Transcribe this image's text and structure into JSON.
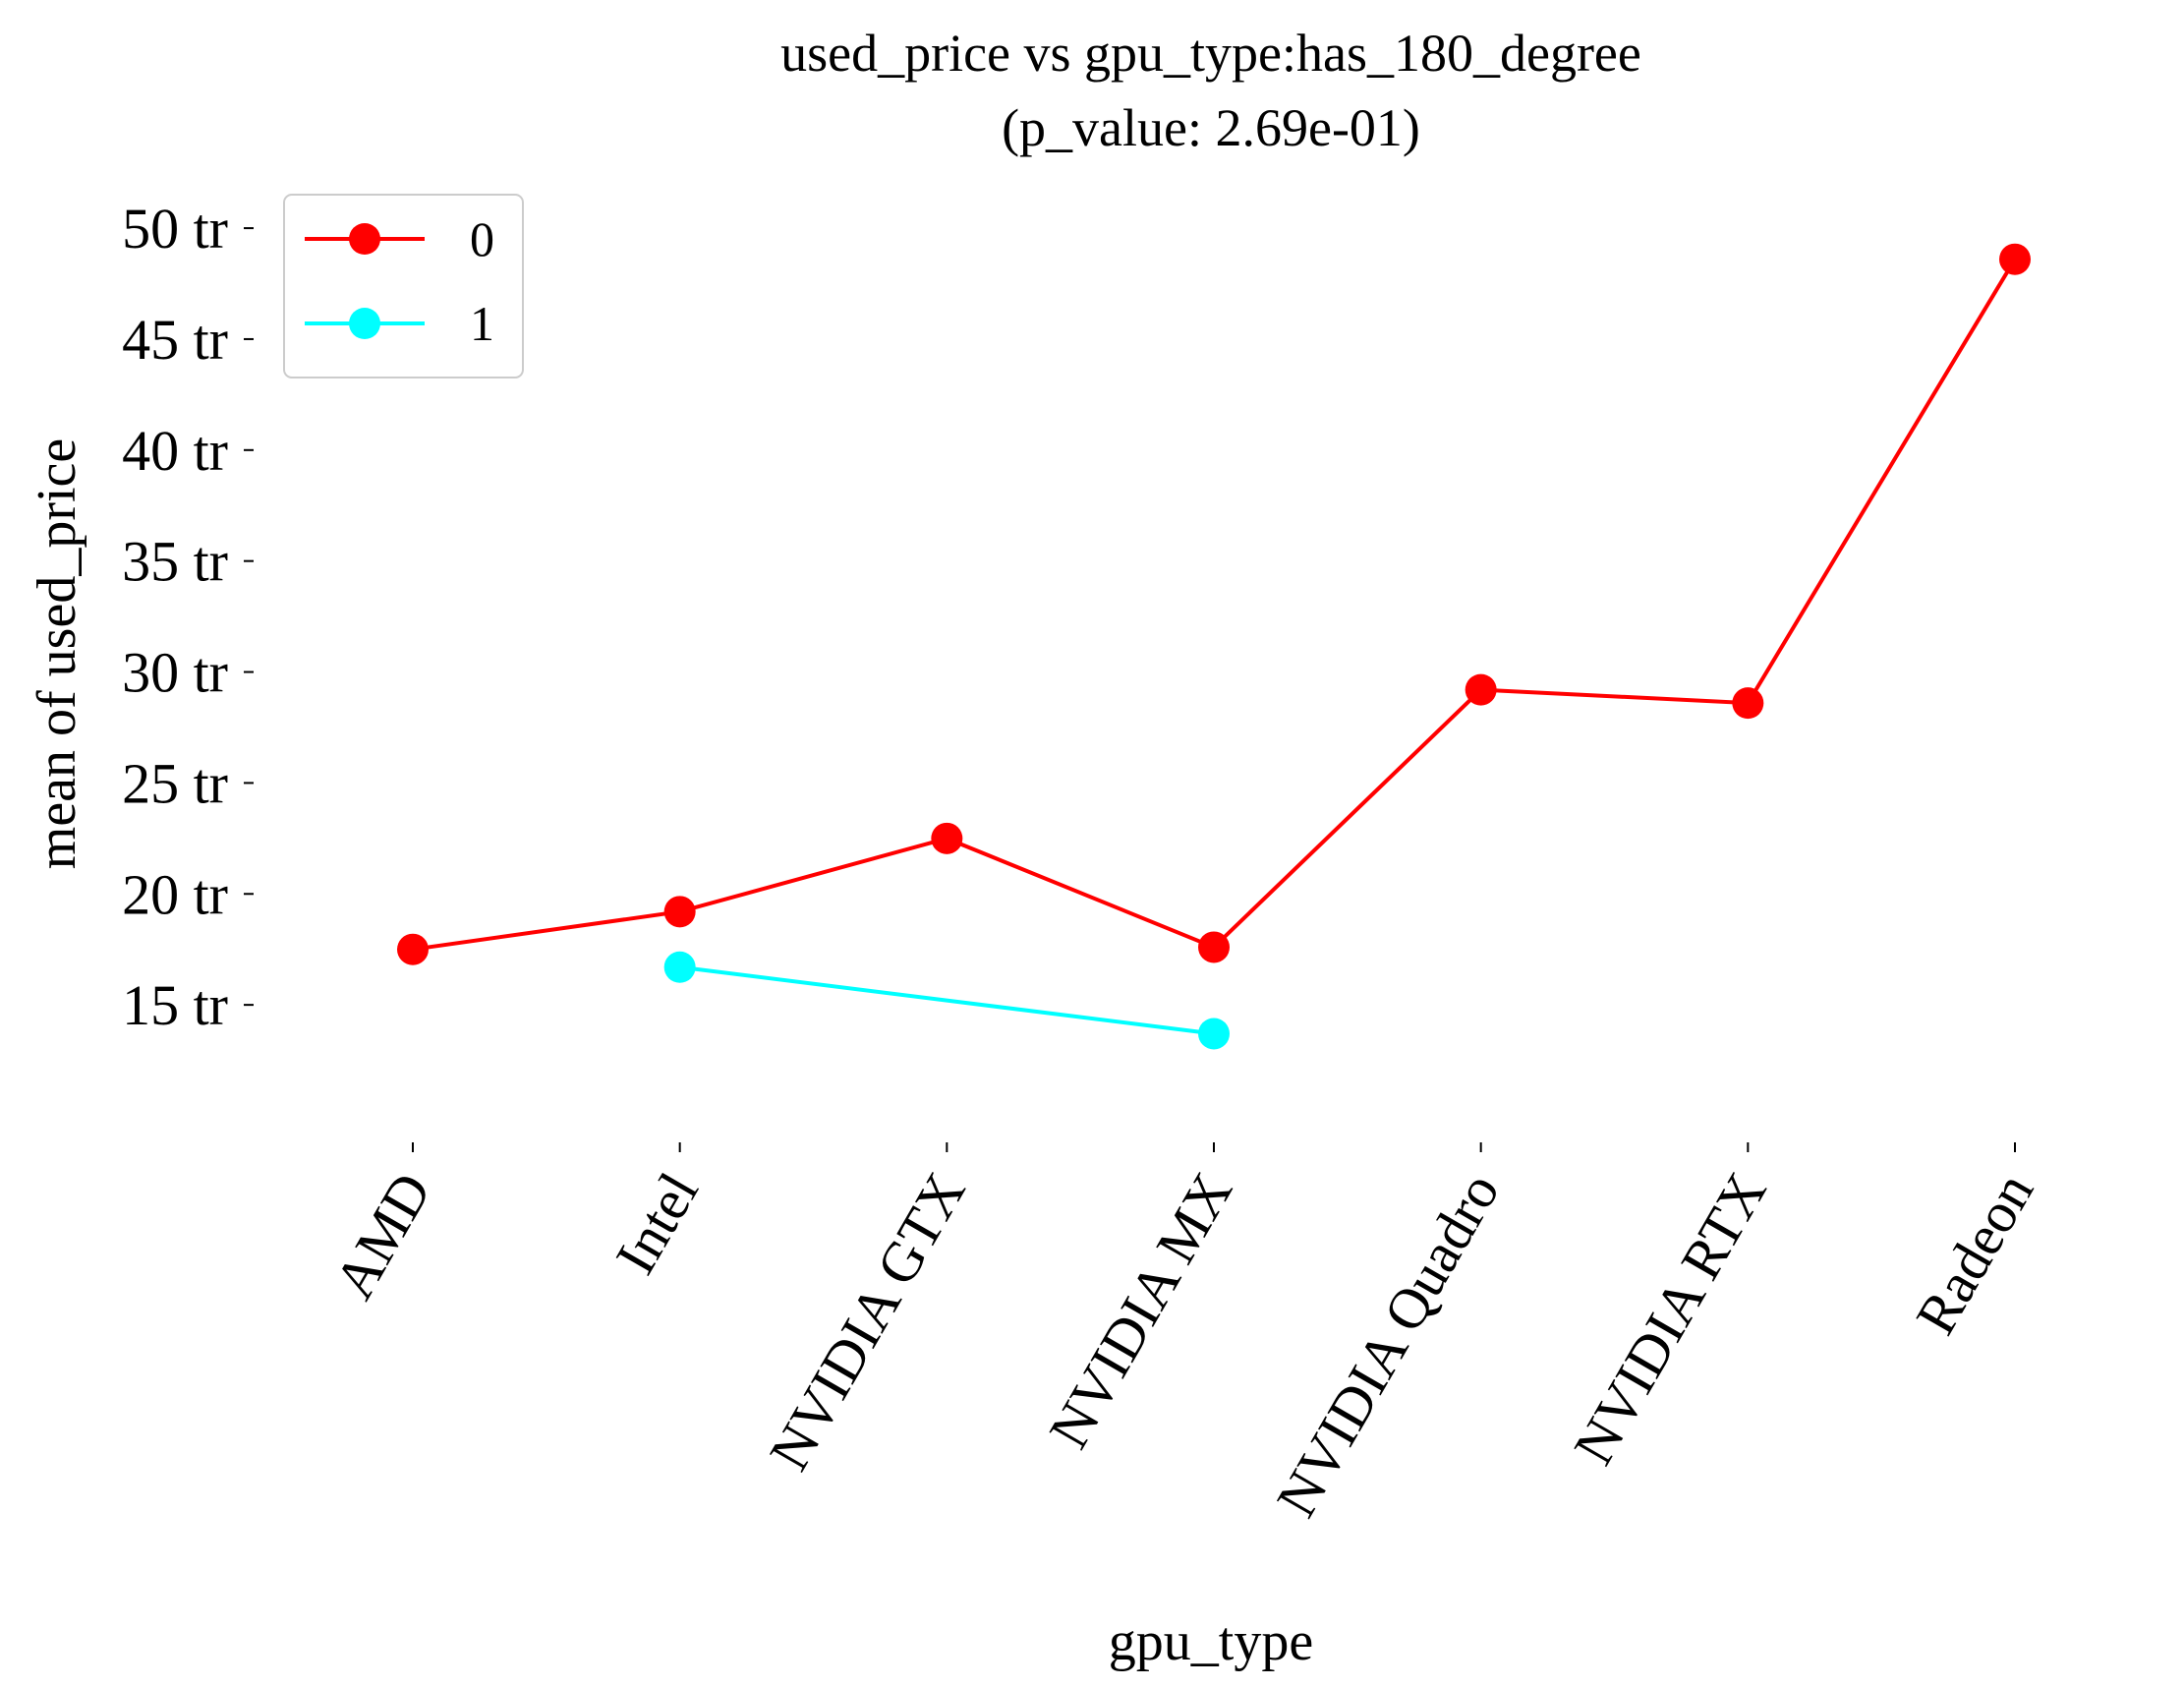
{
  "chart_data": {
    "type": "line",
    "title": "used_price vs gpu_type:has_180_degree",
    "subtitle": "(p_value: 2.69e-01)",
    "xlabel": "gpu_type",
    "ylabel": "mean of used_price",
    "categories": [
      "AMD",
      "Intel",
      "NVIDIA GTX",
      "NVIDIA MX",
      "NVIDIA Quadro",
      "NVIDIA RTX",
      "Radeon"
    ],
    "yticks": [
      15,
      20,
      25,
      30,
      35,
      40,
      45,
      50
    ],
    "ytick_labels": [
      "15 tr",
      "20 tr",
      "25 tr",
      "30 tr",
      "35 tr",
      "40 tr",
      "45 tr",
      "50 tr"
    ],
    "ylim": [
      10.0,
      51.2
    ],
    "grid": false,
    "legend_position": "top-left",
    "series": [
      {
        "name": "0",
        "color": "#ff0000",
        "values": [
          17.5,
          19.2,
          22.5,
          17.6,
          29.2,
          28.6,
          48.6
        ]
      },
      {
        "name": "1",
        "color": "#00ffff",
        "values": [
          null,
          16.7,
          null,
          13.7,
          null,
          null,
          null
        ]
      }
    ]
  }
}
